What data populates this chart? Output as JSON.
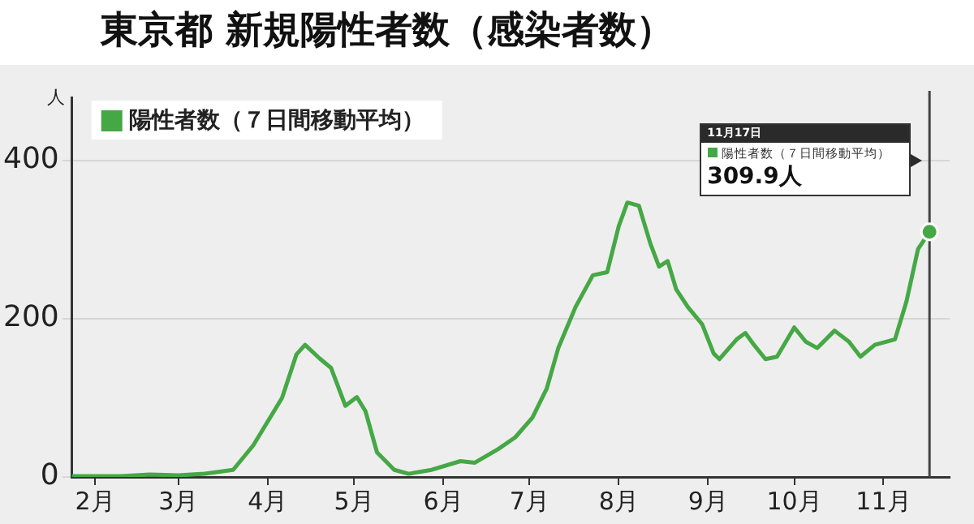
{
  "chart_data": {
    "type": "line",
    "title": "東京都 新規陽性者数（感染者数）",
    "ylabel": "人",
    "x": [
      "--01-24",
      "--02-10",
      "--02-20",
      "--03-01",
      "--03-10",
      "--03-20",
      "--03-27",
      "--04-06",
      "--04-11",
      "--04-14",
      "--04-19",
      "--04-23",
      "--04-28",
      "--05-02",
      "--05-05",
      "--05-09",
      "--05-15",
      "--05-20",
      "--05-28",
      "--06-07",
      "--06-12",
      "--06-20",
      "--06-26",
      "--07-02",
      "--07-07",
      "--07-11",
      "--07-17",
      "--07-23",
      "--07-28",
      "--08-01",
      "--08-04",
      "--08-08",
      "--08-12",
      "--08-15",
      "--08-18",
      "--08-21",
      "--08-25",
      "--08-30",
      "--09-03",
      "--09-05",
      "--09-11",
      "--09-14",
      "--09-17",
      "--09-21",
      "--09-25",
      "--10-01",
      "--10-05",
      "--10-09",
      "--10-15",
      "--10-20",
      "--10-24",
      "--10-29",
      "--11-05",
      "--11-09",
      "--11-13",
      "--11-17"
    ],
    "series": [
      {
        "name": "陽性者数（７日間移動平均）",
        "color": "#45a845",
        "values": [
          1,
          1,
          3,
          2,
          4,
          9,
          40,
          100,
          155,
          167,
          150,
          138,
          90,
          101,
          83,
          31,
          9,
          4,
          9,
          20,
          18,
          35,
          50,
          75,
          112,
          163,
          215,
          255,
          259,
          317,
          347,
          343,
          295,
          266,
          273,
          237,
          215,
          193,
          156,
          149,
          174,
          182,
          167,
          149,
          152,
          189,
          171,
          163,
          185,
          171,
          152,
          167,
          174,
          222,
          288,
          309.9
        ]
      }
    ],
    "xlim": [
      "--01-24",
      "--11-24"
    ],
    "xticks": [
      {
        "value": "--02-01",
        "label": "2月"
      },
      {
        "value": "--03-01",
        "label": "3月"
      },
      {
        "value": "--04-01",
        "label": "4月"
      },
      {
        "value": "--05-01",
        "label": "5月"
      },
      {
        "value": "--06-01",
        "label": "6月"
      },
      {
        "value": "--07-01",
        "label": "7月"
      },
      {
        "value": "--08-01",
        "label": "8月"
      },
      {
        "value": "--09-01",
        "label": "9月"
      },
      {
        "value": "--10-01",
        "label": "10月"
      },
      {
        "value": "--11-01",
        "label": "11月"
      }
    ],
    "ylim": [
      0,
      480
    ],
    "yticks": [
      0,
      200,
      400
    ],
    "grid": "y",
    "legend": "top left",
    "marker": "none",
    "line_style": "solid",
    "ref_lines": [
      {
        "axis": "x",
        "value": "--11-17",
        "label": null,
        "color": "#444444"
      }
    ],
    "annotations": [
      "11月17日",
      "陽性者数（７日間移動平均）",
      "309.9人"
    ]
  }
}
